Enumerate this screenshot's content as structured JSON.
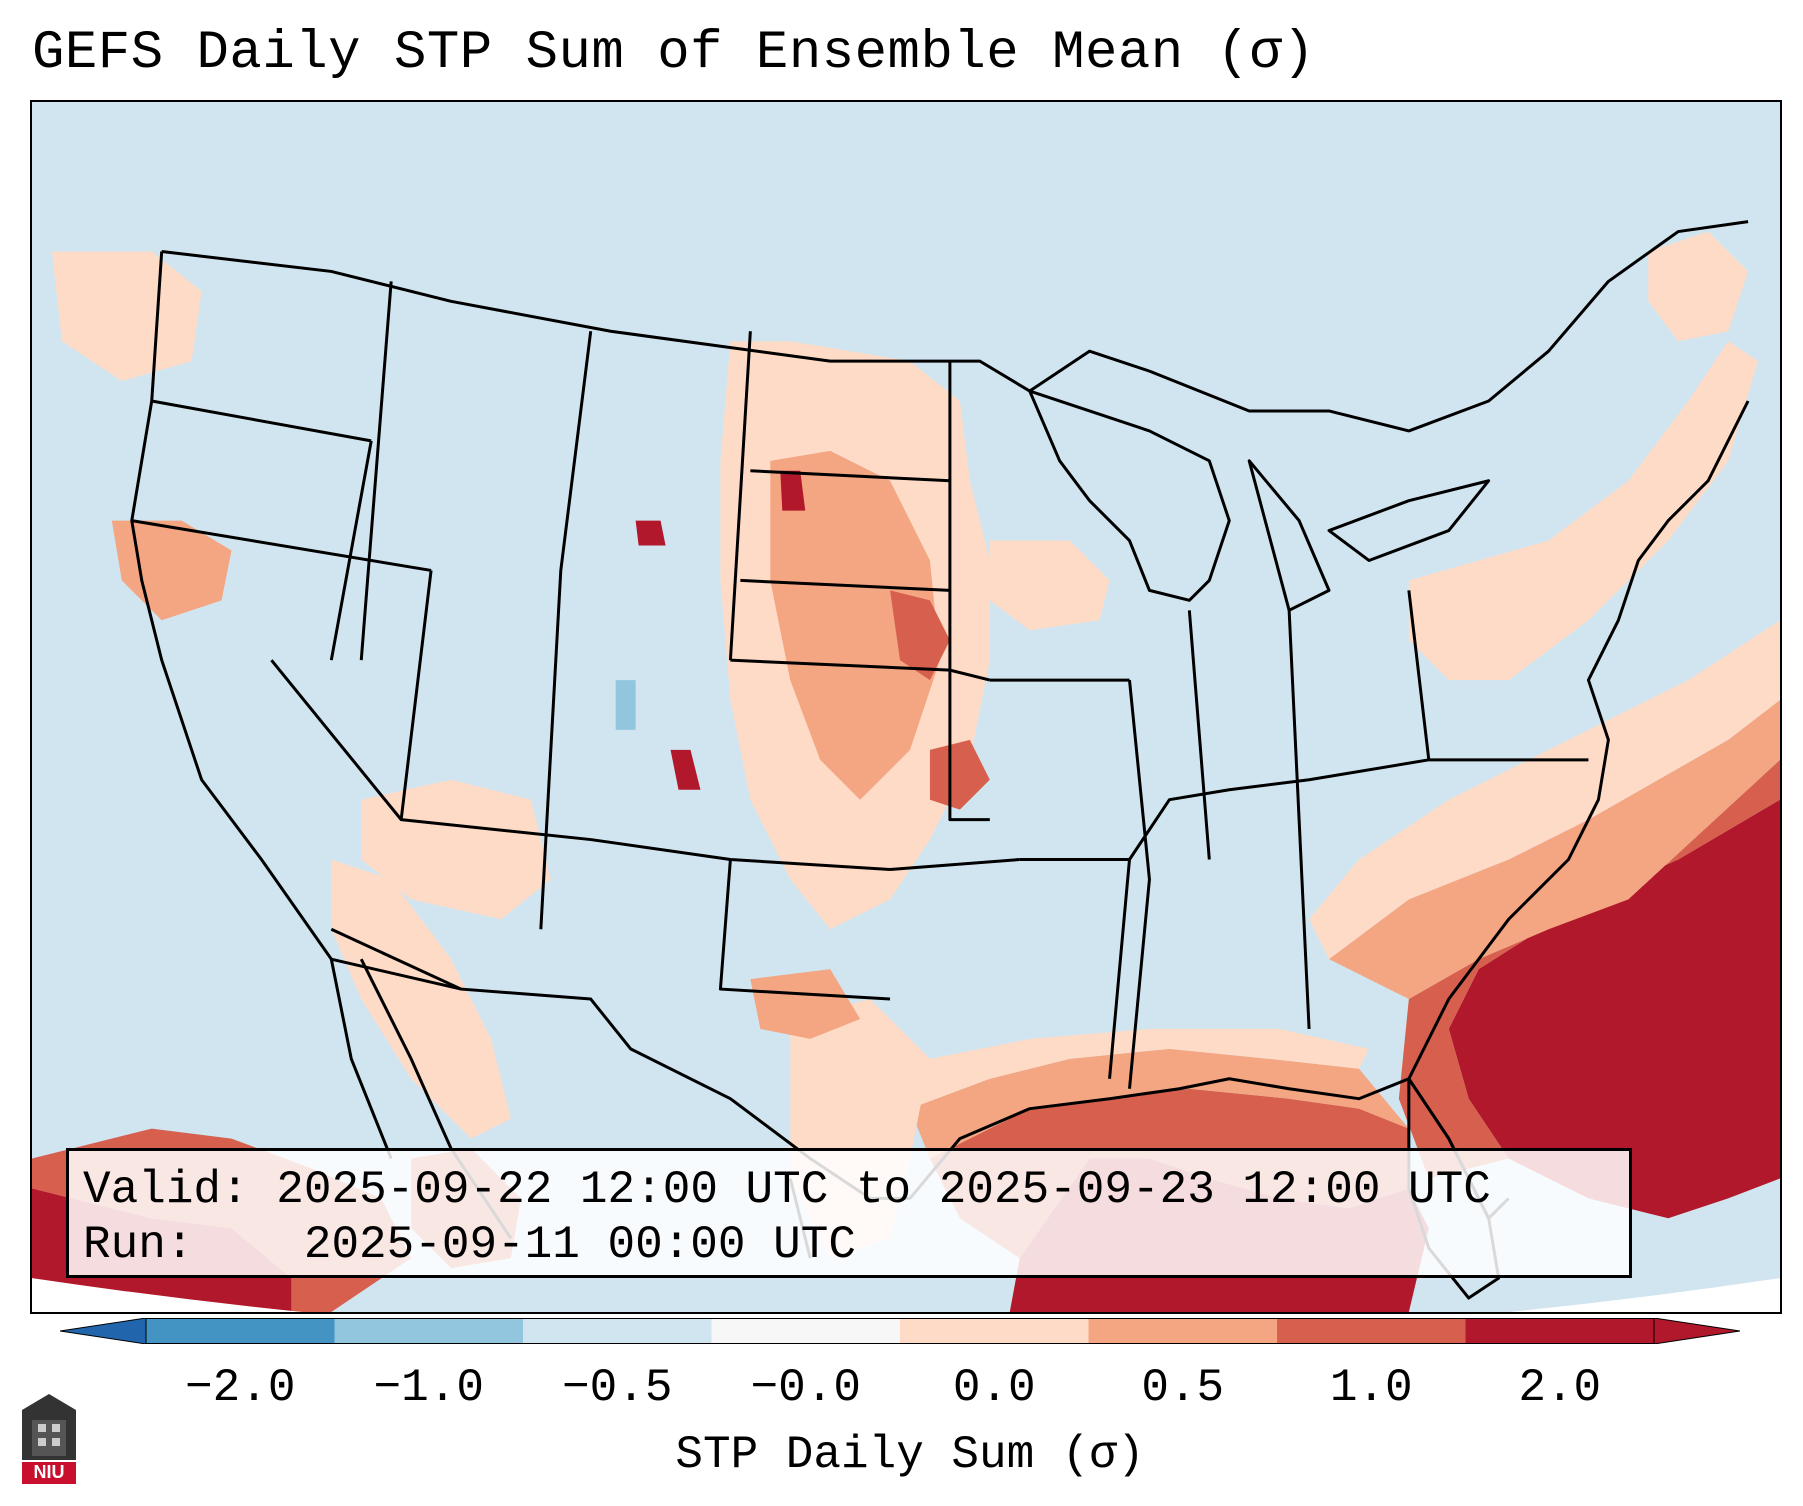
{
  "title": "GEFS Daily STP Sum of Ensemble Mean (σ)",
  "info": {
    "valid_label": "Valid:",
    "valid_value": "2025-09-22 12:00 UTC to 2025-09-23 12:00 UTC",
    "run_label": "Run:",
    "run_value": "2025-09-11 00:00 UTC"
  },
  "colorbar": {
    "label": "STP Daily Sum (σ)",
    "ticks": [
      "−2.0",
      "−1.0",
      "−0.5",
      "−0.0",
      "0.0",
      "0.5",
      "1.0",
      "2.0"
    ],
    "colors": [
      "#4393c3",
      "#92c5de",
      "#d1e5f0",
      "#f7f7f7",
      "#fddbc7",
      "#f4a582",
      "#d6604d",
      "#b2182b"
    ],
    "extend_min_color": "#2166ac",
    "extend_max_color": "#b2182b"
  },
  "map": {
    "background_color": "#d1e5f0",
    "border_color": "#000000"
  },
  "logo": {
    "text": "NIU"
  }
}
